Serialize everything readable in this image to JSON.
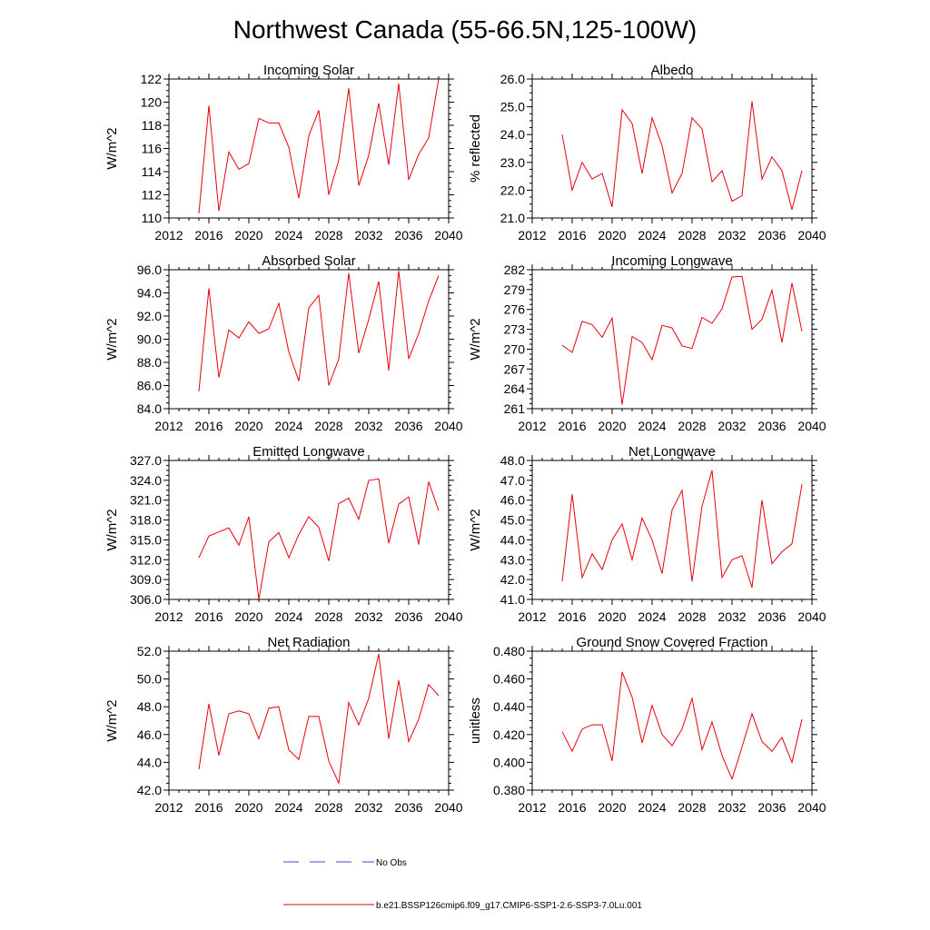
{
  "title": "Northwest Canada (55-66.5N,125-100W)",
  "legend": [
    {
      "label": "No Obs",
      "color": "#4a4ac8",
      "style": "dashed"
    },
    {
      "label": "b.e21.BSSP126cmip6.f09_g17.CMIP6-SSP1-2.6-SSP3-7.0Lu.001",
      "color": "#e8000b",
      "style": "solid"
    }
  ],
  "chart_data": [
    {
      "type": "line",
      "title": "Incoming Solar",
      "ylabel": "W/m^2",
      "xlim": [
        2012,
        2040
      ],
      "ylim": [
        110,
        122
      ],
      "xticks": [
        "2012",
        "2016",
        "2020",
        "2024",
        "2028",
        "2032",
        "2036",
        "2040"
      ],
      "yticks": [
        "110",
        "112",
        "114",
        "116",
        "118",
        "120",
        "122"
      ],
      "x": [
        2015,
        2016,
        2017,
        2018,
        2019,
        2020,
        2021,
        2022,
        2023,
        2024,
        2025,
        2026,
        2027,
        2028,
        2029,
        2030,
        2031,
        2032,
        2033,
        2034,
        2035,
        2036,
        2037,
        2038,
        2039
      ],
      "series": [
        {
          "values": [
            110.4,
            119.7,
            110.6,
            115.7,
            114.2,
            114.7,
            118.6,
            118.2,
            118.2,
            116.1,
            111.7,
            117.1,
            119.3,
            112.0,
            115.0,
            121.2,
            112.8,
            115.4,
            119.9,
            114.6,
            121.6,
            113.3,
            115.5,
            116.9,
            122.0
          ]
        }
      ]
    },
    {
      "type": "line",
      "title": "Albedo",
      "ylabel": "% reflected",
      "xlim": [
        2012,
        2040
      ],
      "ylim": [
        21.0,
        26.0
      ],
      "xticks": [
        "2012",
        "2016",
        "2020",
        "2024",
        "2028",
        "2032",
        "2036",
        "2040"
      ],
      "yticks": [
        "21.0",
        "22.0",
        "23.0",
        "24.0",
        "25.0",
        "26.0"
      ],
      "x": [
        2015,
        2016,
        2017,
        2018,
        2019,
        2020,
        2021,
        2022,
        2023,
        2024,
        2025,
        2026,
        2027,
        2028,
        2029,
        2030,
        2031,
        2032,
        2033,
        2034,
        2035,
        2036,
        2037,
        2038,
        2039
      ],
      "series": [
        {
          "values": [
            24.0,
            22.0,
            23.0,
            22.4,
            22.6,
            21.4,
            24.9,
            24.4,
            22.6,
            24.6,
            23.6,
            21.9,
            22.6,
            24.6,
            24.2,
            22.3,
            22.7,
            21.6,
            21.8,
            25.2,
            22.4,
            23.2,
            22.7,
            21.3,
            22.7
          ]
        }
      ]
    },
    {
      "type": "line",
      "title": "Absorbed Solar",
      "ylabel": "W/m^2",
      "xlim": [
        2012,
        2040
      ],
      "ylim": [
        84.0,
        96.0
      ],
      "xticks": [
        "2012",
        "2016",
        "2020",
        "2024",
        "2028",
        "2032",
        "2036",
        "2040"
      ],
      "yticks": [
        "84.0",
        "86.0",
        "88.0",
        "90.0",
        "92.0",
        "94.0",
        "96.0"
      ],
      "x": [
        2015,
        2016,
        2017,
        2018,
        2019,
        2020,
        2021,
        2022,
        2023,
        2024,
        2025,
        2026,
        2027,
        2028,
        2029,
        2030,
        2031,
        2032,
        2033,
        2034,
        2035,
        2036,
        2037,
        2038,
        2039
      ],
      "series": [
        {
          "values": [
            85.5,
            94.4,
            86.7,
            90.8,
            90.1,
            91.5,
            90.5,
            90.9,
            93.1,
            88.9,
            86.4,
            92.7,
            93.8,
            86.0,
            88.3,
            95.7,
            88.8,
            91.7,
            95.0,
            87.3,
            95.9,
            88.3,
            90.5,
            93.3,
            95.5
          ]
        }
      ]
    },
    {
      "type": "line",
      "title": "Incoming Longwave",
      "ylabel": "W/m^2",
      "xlim": [
        2012,
        2040
      ],
      "ylim": [
        261,
        282
      ],
      "xticks": [
        "2012",
        "2016",
        "2020",
        "2024",
        "2028",
        "2032",
        "2036",
        "2040"
      ],
      "yticks": [
        "261",
        "264",
        "267",
        "270",
        "273",
        "276",
        "279",
        "282"
      ],
      "x": [
        2015,
        2016,
        2017,
        2018,
        2019,
        2020,
        2021,
        2022,
        2023,
        2024,
        2025,
        2026,
        2027,
        2028,
        2029,
        2030,
        2031,
        2032,
        2033,
        2034,
        2035,
        2036,
        2037,
        2038,
        2039
      ],
      "series": [
        {
          "values": [
            270.6,
            269.5,
            274.2,
            273.7,
            271.8,
            274.7,
            261.6,
            271.9,
            271.0,
            268.4,
            273.6,
            273.2,
            270.5,
            270.1,
            274.8,
            273.9,
            276.1,
            280.9,
            281.0,
            273.0,
            274.5,
            278.9,
            271.0,
            280.0,
            272.7
          ]
        }
      ]
    },
    {
      "type": "line",
      "title": "Emitted Longwave",
      "ylabel": "W/m^2",
      "xlim": [
        2012,
        2040
      ],
      "ylim": [
        306.0,
        327.0
      ],
      "xticks": [
        "2012",
        "2016",
        "2020",
        "2024",
        "2028",
        "2032",
        "2036",
        "2040"
      ],
      "yticks": [
        "306.0",
        "309.0",
        "312.0",
        "315.0",
        "318.0",
        "321.0",
        "324.0",
        "327.0"
      ],
      "x": [
        2015,
        2016,
        2017,
        2018,
        2019,
        2020,
        2021,
        2022,
        2023,
        2024,
        2025,
        2026,
        2027,
        2028,
        2029,
        2030,
        2031,
        2032,
        2033,
        2034,
        2035,
        2036,
        2037,
        2038,
        2039
      ],
      "series": [
        {
          "values": [
            312.3,
            315.6,
            316.2,
            316.8,
            314.2,
            318.5,
            306.0,
            314.7,
            316.1,
            312.3,
            315.8,
            318.5,
            316.9,
            311.8,
            320.5,
            321.3,
            318.1,
            324.0,
            324.2,
            314.5,
            320.4,
            321.5,
            314.3,
            323.8,
            319.4
          ]
        }
      ]
    },
    {
      "type": "line",
      "title": "Net Longwave",
      "ylabel": "W/m^2",
      "xlim": [
        2012,
        2040
      ],
      "ylim": [
        41.0,
        48.0
      ],
      "xticks": [
        "2012",
        "2016",
        "2020",
        "2024",
        "2028",
        "2032",
        "2036",
        "2040"
      ],
      "yticks": [
        "41.0",
        "42.0",
        "43.0",
        "44.0",
        "45.0",
        "46.0",
        "47.0",
        "48.0"
      ],
      "x": [
        2015,
        2016,
        2017,
        2018,
        2019,
        2020,
        2021,
        2022,
        2023,
        2024,
        2025,
        2026,
        2027,
        2028,
        2029,
        2030,
        2031,
        2032,
        2033,
        2034,
        2035,
        2036,
        2037,
        2038,
        2039
      ],
      "series": [
        {
          "values": [
            41.9,
            46.3,
            42.1,
            43.3,
            42.5,
            44.0,
            44.8,
            43.0,
            45.1,
            44.0,
            42.3,
            45.5,
            46.5,
            41.9,
            45.7,
            47.5,
            42.1,
            43.0,
            43.2,
            41.6,
            46.0,
            42.8,
            43.4,
            43.8,
            46.8
          ]
        }
      ]
    },
    {
      "type": "line",
      "title": "Net Radiation",
      "ylabel": "W/m^2",
      "xlim": [
        2012,
        2040
      ],
      "ylim": [
        42.0,
        52.0
      ],
      "xticks": [
        "2012",
        "2016",
        "2020",
        "2024",
        "2028",
        "2032",
        "2036",
        "2040"
      ],
      "yticks": [
        "42.0",
        "44.0",
        "46.0",
        "48.0",
        "50.0",
        "52.0"
      ],
      "x": [
        2015,
        2016,
        2017,
        2018,
        2019,
        2020,
        2021,
        2022,
        2023,
        2024,
        2025,
        2026,
        2027,
        2028,
        2029,
        2030,
        2031,
        2032,
        2033,
        2034,
        2035,
        2036,
        2037,
        2038,
        2039
      ],
      "series": [
        {
          "values": [
            43.5,
            48.2,
            44.5,
            47.5,
            47.7,
            47.5,
            45.7,
            47.9,
            48.0,
            44.9,
            44.2,
            47.3,
            47.3,
            44.1,
            42.5,
            48.3,
            46.7,
            48.6,
            51.8,
            45.7,
            49.9,
            45.5,
            47.1,
            49.6,
            48.8
          ]
        }
      ]
    },
    {
      "type": "line",
      "title": "Ground Snow Covered Fraction",
      "ylabel": "unitless",
      "xlim": [
        2012,
        2040
      ],
      "ylim": [
        0.38,
        0.48
      ],
      "xticks": [
        "2012",
        "2016",
        "2020",
        "2024",
        "2028",
        "2032",
        "2036",
        "2040"
      ],
      "yticks": [
        "0.380",
        "0.400",
        "0.420",
        "0.440",
        "0.460",
        "0.480"
      ],
      "x": [
        2015,
        2016,
        2017,
        2018,
        2019,
        2020,
        2021,
        2022,
        2023,
        2024,
        2025,
        2026,
        2027,
        2028,
        2029,
        2030,
        2031,
        2032,
        2033,
        2034,
        2035,
        2036,
        2037,
        2038,
        2039
      ],
      "series": [
        {
          "values": [
            0.422,
            0.408,
            0.424,
            0.427,
            0.427,
            0.401,
            0.465,
            0.447,
            0.414,
            0.441,
            0.42,
            0.412,
            0.424,
            0.446,
            0.409,
            0.429,
            0.405,
            0.388,
            0.411,
            0.435,
            0.415,
            0.408,
            0.418,
            0.4,
            0.431
          ]
        }
      ]
    }
  ]
}
